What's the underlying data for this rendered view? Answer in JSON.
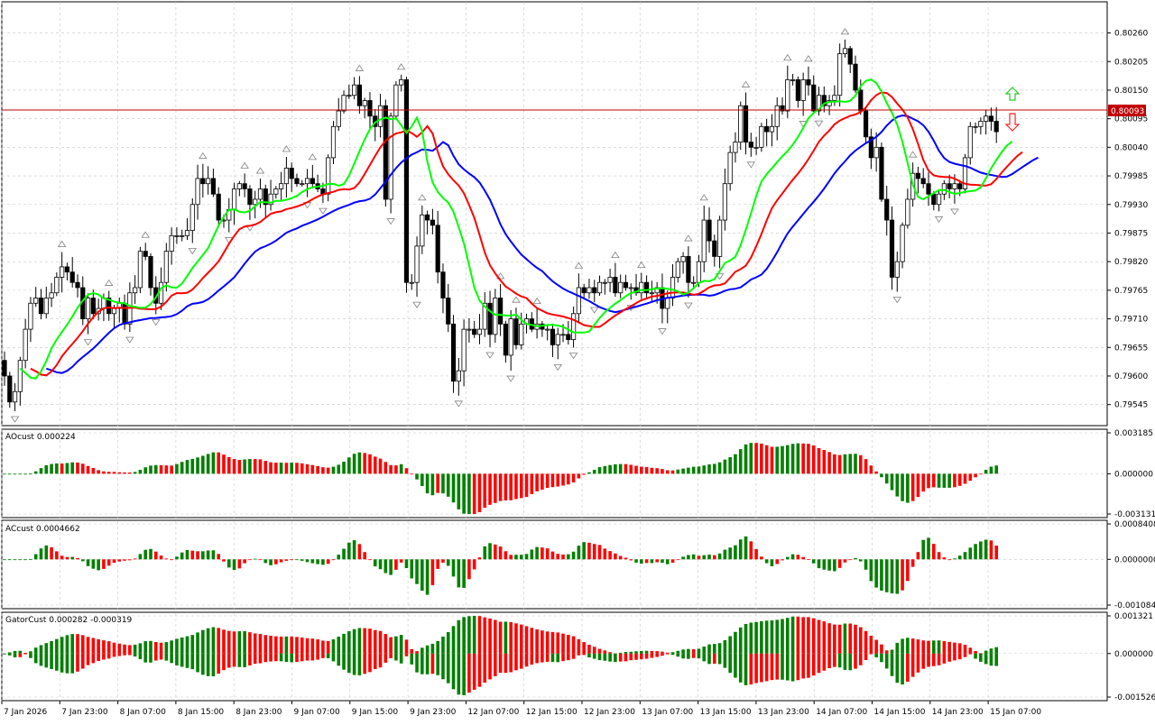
{
  "colors": {
    "grid": "#c8c8c8",
    "frame": "#000000",
    "bull": "#008000",
    "bear": "#ff0000",
    "jaw": "#0000ff",
    "teeth": "#ff0000",
    "lips": "#00ff00",
    "bid_line": "#c00000",
    "fractal": "#808080"
  },
  "price_panel": {
    "bid_label": "0.80093",
    "y_ticks": [
      "0.80260",
      "0.80205",
      "0.80150",
      "0.80095",
      "0.80040",
      "0.79985",
      "0.79930",
      "0.79875",
      "0.79820",
      "0.79765",
      "0.79710",
      "0.79655",
      "0.79600",
      "0.79545"
    ]
  },
  "time_axis": {
    "labels": [
      "7 Jan 2026",
      "7 Jan 23:00",
      "8 Jan 07:00",
      "8 Jan 15:00",
      "8 Jan 23:00",
      "9 Jan 07:00",
      "9 Jan 15:00",
      "9 Jan 23:00",
      "12 Jan 07:00",
      "12 Jan 15:00",
      "12 Jan 23:00",
      "13 Jan 07:00",
      "13 Jan 15:00",
      "13 Jan 23:00",
      "14 Jan 07:00",
      "14 Jan 15:00",
      "14 Jan 23:00",
      "15 Jan 07:00"
    ]
  },
  "ao_panel": {
    "label": "AOcust 0.000224",
    "y_ticks": [
      "0.003185",
      "0.000000",
      "-0.003131"
    ]
  },
  "ac_panel": {
    "label": "ACcust 0.0004662",
    "y_ticks": [
      "0.0008408",
      "0.0000000",
      "-0.0010845"
    ]
  },
  "gator_panel": {
    "label": "GatorCust 0.000282 -0.000319",
    "y_ticks": [
      "0.001321",
      "0.000000",
      "-0.001526"
    ]
  },
  "chart_data": {
    "type": "candlestick",
    "bid": 0.80093,
    "price_range": [
      0.79508,
      0.80313
    ],
    "series": [
      {
        "name": "close",
        "values": [
          0.796,
          0.7955,
          0.7957,
          0.7963,
          0.7969,
          0.7974,
          0.7975,
          0.7972,
          0.7975,
          0.7976,
          0.7979,
          0.7981,
          0.798,
          0.7978,
          0.7977,
          0.7971,
          0.7975,
          0.7972,
          0.7973,
          0.7975,
          0.7972,
          0.7973,
          0.7974,
          0.797,
          0.7976,
          0.7977,
          0.7984,
          0.7983,
          0.7977,
          0.7974,
          0.7978,
          0.7984,
          0.7987,
          0.7987,
          0.7987,
          0.7988,
          0.7993,
          0.7998,
          0.7997,
          0.7998,
          0.7995,
          0.799,
          0.799,
          0.7992,
          0.7996,
          0.7997,
          0.7996,
          0.7993,
          0.7994,
          0.7996,
          0.7993,
          0.7995,
          0.7996,
          0.7997,
          0.8,
          0.7998,
          0.7997,
          0.7997,
          0.7998,
          0.7997,
          0.7996,
          0.7995,
          0.8002,
          0.8008,
          0.8011,
          0.8014,
          0.8014,
          0.8016,
          0.8012,
          0.8013,
          0.801,
          0.8008,
          0.8012,
          0.7994,
          0.801,
          0.8016,
          0.8017,
          0.7978,
          0.7978,
          0.7985,
          0.7991,
          0.799,
          0.7989,
          0.798,
          0.7975,
          0.797,
          0.7959,
          0.7961,
          0.7969,
          0.7969,
          0.7968,
          0.7969,
          0.7974,
          0.7968,
          0.7975,
          0.797,
          0.7964,
          0.7971,
          0.7966,
          0.797,
          0.7971,
          0.7969,
          0.797,
          0.7969,
          0.7969,
          0.7966,
          0.7968,
          0.7968,
          0.7967,
          0.7972,
          0.7977,
          0.7976,
          0.7977,
          0.7976,
          0.7978,
          0.7978,
          0.7979,
          0.7976,
          0.7978,
          0.7977,
          0.7977,
          0.7976,
          0.7978,
          0.7976,
          0.7976,
          0.7977,
          0.7973,
          0.7975,
          0.7979,
          0.7982,
          0.7983,
          0.7978,
          0.7978,
          0.7982,
          0.799,
          0.7986,
          0.7983,
          0.799,
          0.7997,
          0.8003,
          0.8005,
          0.8012,
          0.8005,
          0.8004,
          0.8004,
          0.8008,
          0.8007,
          0.8008,
          0.8012,
          0.8011,
          0.8017,
          0.8017,
          0.8013,
          0.8017,
          0.8016,
          0.8011,
          0.8014,
          0.8012,
          0.8013,
          0.8014,
          0.8022,
          0.8023,
          0.802,
          0.8015,
          0.8011,
          0.8006,
          0.8002,
          0.8004,
          0.7994,
          0.799,
          0.7979,
          0.7982,
          0.7989,
          0.7994,
          0.7999,
          0.7998,
          0.7997,
          0.7995,
          0.7993,
          0.7995,
          0.7997,
          0.7996,
          0.7997,
          0.7996,
          0.8002,
          0.8008,
          0.8008,
          0.8009,
          0.801,
          0.8009,
          0.8007
        ]
      }
    ],
    "indicators": [
      "Alligator jaw",
      "Alligator teeth",
      "Alligator lips",
      "Fractals",
      "AOcust",
      "ACcust",
      "GatorCust"
    ]
  }
}
